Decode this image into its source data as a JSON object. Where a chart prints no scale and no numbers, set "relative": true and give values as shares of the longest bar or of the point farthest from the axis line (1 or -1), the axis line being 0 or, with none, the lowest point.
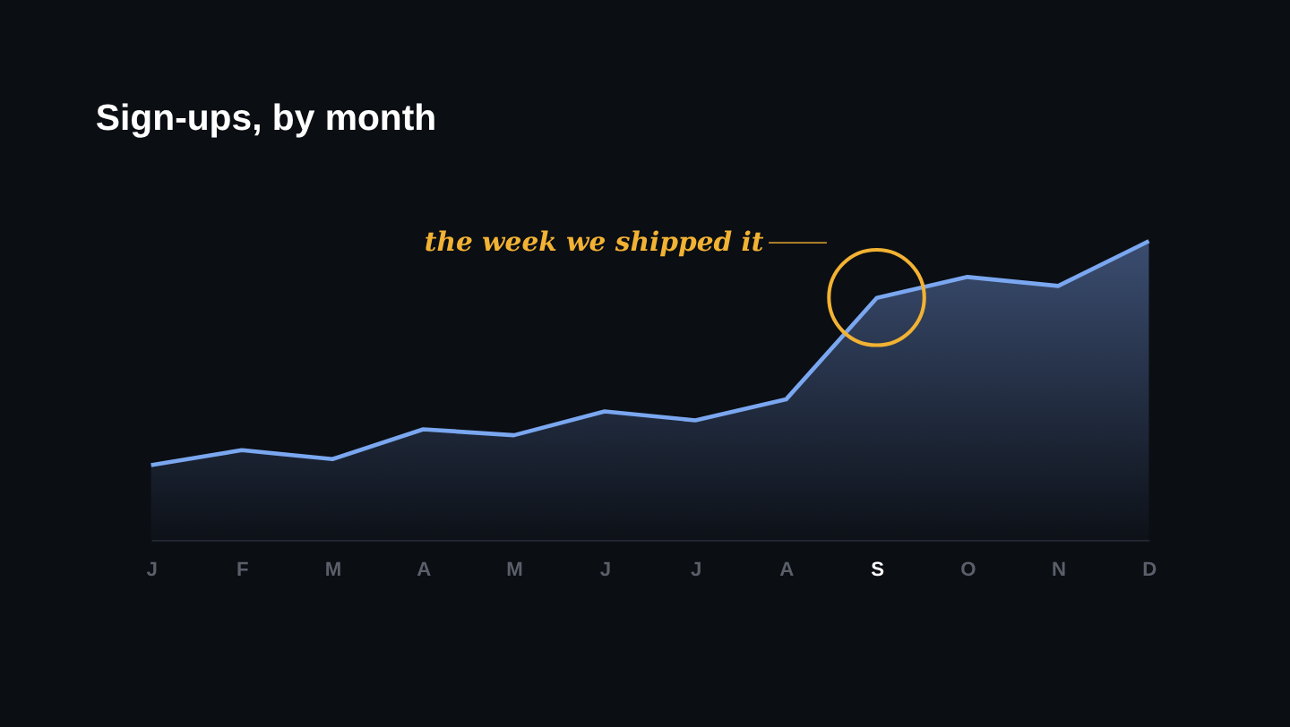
{
  "chart_data": {
    "type": "area",
    "title": "Sign-ups, by month",
    "relative": true,
    "categories": [
      "J",
      "F",
      "M",
      "A",
      "M",
      "J",
      "J",
      "A",
      "S",
      "O",
      "N",
      "D"
    ],
    "series": [
      {
        "color": "#7aa7f0",
        "values": [
          0.25,
          0.3,
          0.27,
          0.37,
          0.35,
          0.43,
          0.4,
          0.47,
          0.81,
          0.88,
          0.85,
          1.0
        ]
      }
    ],
    "annotations": [
      "the week we shipped it"
    ],
    "grid": false
  }
}
